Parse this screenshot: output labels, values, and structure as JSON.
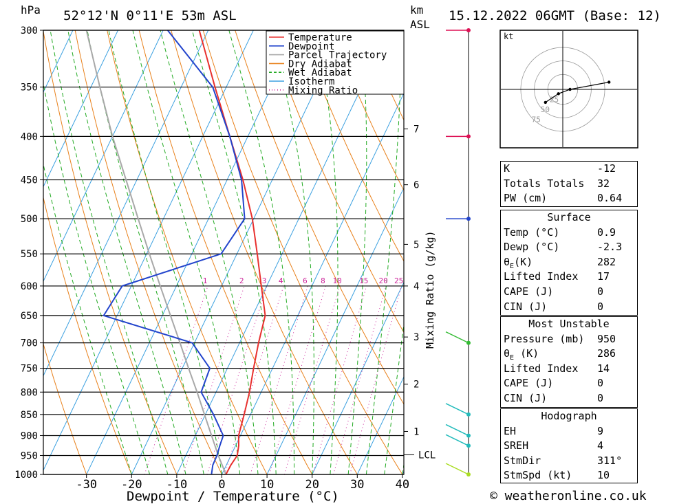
{
  "header": {
    "hpa_label": "hPa",
    "location": "52°12'N  0°11'E  53m  ASL",
    "km_label": "km",
    "asl_label": "ASL",
    "datetime": "15.12.2022  06GMT  (Base: 12)"
  },
  "chart_data": {
    "type": "line",
    "title": "",
    "xlabel": "Dewpoint / Temperature (°C)",
    "ylabel": "hPa",
    "xlim": [
      -40,
      40
    ],
    "ylim": [
      1000,
      300
    ],
    "x_ticks": [
      -30,
      -20,
      -10,
      0,
      10,
      20,
      30,
      40
    ],
    "pressure_levels": [
      300,
      350,
      400,
      450,
      500,
      550,
      600,
      650,
      700,
      750,
      800,
      850,
      900,
      950,
      1000
    ],
    "km_ticks": [
      {
        "label": "7",
        "p": 392
      },
      {
        "label": "6",
        "p": 456
      },
      {
        "label": "5",
        "p": 536
      },
      {
        "label": "4",
        "p": 600
      },
      {
        "label": "3",
        "p": 689
      },
      {
        "label": "2",
        "p": 783
      },
      {
        "label": "1",
        "p": 890
      }
    ],
    "lcl_label": "LCL",
    "lcl_p": 948,
    "right_axis_label": "Mixing Ratio (g/kg)",
    "mixing_ratio_labels": [
      "1",
      "2",
      "3",
      "4",
      "6",
      "8",
      "10",
      "15",
      "20",
      "25"
    ],
    "legend": [
      "Temperature",
      "Dewpoint",
      "Parcel Trajectory",
      "Dry Adiabat",
      "Wet Adiabat",
      "Isotherm",
      "Mixing Ratio"
    ],
    "legend_position": "top-right",
    "series": [
      {
        "name": "Temperature",
        "color": "#e8302e",
        "points": [
          [
            1000,
            0.9
          ],
          [
            975,
            1.0
          ],
          [
            950,
            1.4
          ],
          [
            925,
            0.7
          ],
          [
            900,
            -0.4
          ],
          [
            850,
            -1.4
          ],
          [
            800,
            -2.6
          ],
          [
            750,
            -4.2
          ],
          [
            700,
            -5.8
          ],
          [
            650,
            -7.2
          ],
          [
            600,
            -11.2
          ],
          [
            550,
            -15.5
          ],
          [
            500,
            -20.3
          ],
          [
            450,
            -26.5
          ],
          [
            400,
            -34.0
          ],
          [
            350,
            -42.5
          ],
          [
            300,
            -52.0
          ]
        ]
      },
      {
        "name": "Dewpoint",
        "color": "#2244cc",
        "points": [
          [
            1000,
            -2.3
          ],
          [
            975,
            -3.0
          ],
          [
            950,
            -3.1
          ],
          [
            925,
            -3.5
          ],
          [
            900,
            -3.8
          ],
          [
            850,
            -8.2
          ],
          [
            800,
            -13.3
          ],
          [
            750,
            -13.9
          ],
          [
            700,
            -20.5
          ],
          [
            650,
            -43.0
          ],
          [
            600,
            -42.0
          ],
          [
            550,
            -23.5
          ],
          [
            500,
            -22.0
          ],
          [
            450,
            -26.8
          ],
          [
            400,
            -34.0
          ],
          [
            350,
            -43.0
          ],
          [
            300,
            -59.0
          ]
        ]
      },
      {
        "name": "Parcel Trajectory",
        "color": "#a8a8a8",
        "points": [
          [
            1000,
            0.9
          ],
          [
            950,
            -2.8
          ],
          [
            900,
            -6.4
          ],
          [
            850,
            -10.2
          ],
          [
            800,
            -14.2
          ],
          [
            750,
            -18.6
          ],
          [
            700,
            -23.2
          ],
          [
            650,
            -28.2
          ],
          [
            600,
            -33.6
          ],
          [
            550,
            -39.4
          ],
          [
            500,
            -45.6
          ],
          [
            450,
            -52.4
          ],
          [
            400,
            -60.0
          ],
          [
            350,
            -68.0
          ],
          [
            300,
            -77.0
          ]
        ]
      }
    ]
  },
  "winds": [
    {
      "p": 300,
      "color": "#dd1155"
    },
    {
      "p": 400,
      "color": "#dd1155"
    },
    {
      "p": 500,
      "color": "#2244cc"
    },
    {
      "p": 700,
      "color": "#33bb33"
    },
    {
      "p": 850,
      "color": "#22bbbb"
    },
    {
      "p": 900,
      "color": "#22bbbb"
    },
    {
      "p": 925,
      "color": "#22bbbb"
    },
    {
      "p": 1000,
      "color": "#aadd22"
    }
  ],
  "hodograph": {
    "unit_label": "kt",
    "ring_labels": [
      "25",
      "50",
      "75"
    ],
    "points": [
      [
        -12,
        -9
      ],
      [
        -3,
        -3
      ],
      [
        5,
        0
      ],
      [
        32,
        5
      ]
    ]
  },
  "indices": {
    "k_label": "K",
    "k_value": "-12",
    "tt_label": "Totals Totals",
    "tt_value": "32",
    "pw_label": "PW (cm)",
    "pw_value": "0.64"
  },
  "surface": {
    "title": "Surface",
    "temp_label": "Temp (°C)",
    "temp_value": "0.9",
    "dewp_label": "Dewp (°C)",
    "dewp_value": "-2.3",
    "theta_sym": "θ",
    "theta_sub": "E",
    "theta_unit": "(K)",
    "theta_value": "282",
    "li_label": "Lifted Index",
    "li_value": "17",
    "cape_label": "CAPE (J)",
    "cape_value": "0",
    "cin_label": "CIN (J)",
    "cin_value": "0"
  },
  "most_unstable": {
    "title": "Most Unstable",
    "pressure_label": "Pressure (mb)",
    "pressure_value": "950",
    "theta_sym": "θ",
    "theta_sub": "E",
    "theta_unit": " (K)",
    "theta_value": "286",
    "li_label": "Lifted Index",
    "li_value": "14",
    "cape_label": "CAPE (J)",
    "cape_value": "0",
    "cin_label": "CIN (J)",
    "cin_value": "0"
  },
  "hodo_stats": {
    "title": "Hodograph",
    "eh_label": "EH",
    "eh_value": "9",
    "sreh_label": "SREH",
    "sreh_value": "4",
    "stmdir_label": "StmDir",
    "stmdir_value": "311°",
    "stmspd_label": "StmSpd (kt)",
    "stmspd_value": "10"
  },
  "footer": {
    "copyright": "© weatheronline.co.uk"
  },
  "colors": {
    "temperature": "#e8302e",
    "dewpoint": "#2244cc",
    "parcel": "#a8a8a8",
    "dry_adiabat": "#e8801a",
    "wet_adiabat": "#22aa22",
    "isotherm": "#3aa0e0",
    "mixing_ratio": "#cc2299"
  }
}
